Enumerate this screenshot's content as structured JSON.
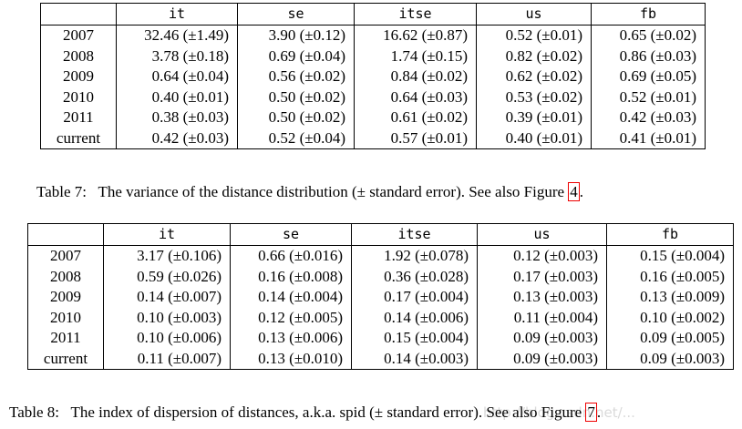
{
  "table7": {
    "headers": [
      "",
      "it",
      "se",
      "itse",
      "us",
      "fb"
    ],
    "rows": [
      {
        "label": "2007",
        "cells": [
          "32.46 (±1.49)",
          "3.90 (±0.12)",
          "16.62 (±0.87)",
          "0.52 (±0.01)",
          "0.65 (±0.02)"
        ]
      },
      {
        "label": "2008",
        "cells": [
          "3.78 (±0.18)",
          "0.69 (±0.04)",
          "1.74 (±0.15)",
          "0.82 (±0.02)",
          "0.86 (±0.03)"
        ]
      },
      {
        "label": "2009",
        "cells": [
          "0.64 (±0.04)",
          "0.56 (±0.02)",
          "0.84 (±0.02)",
          "0.62 (±0.02)",
          "0.69 (±0.05)"
        ]
      },
      {
        "label": "2010",
        "cells": [
          "0.40 (±0.01)",
          "0.50 (±0.02)",
          "0.64 (±0.03)",
          "0.53 (±0.02)",
          "0.52 (±0.01)"
        ]
      },
      {
        "label": "2011",
        "cells": [
          "0.38 (±0.03)",
          "0.50 (±0.02)",
          "0.61 (±0.02)",
          "0.39 (±0.01)",
          "0.42 (±0.03)"
        ]
      },
      {
        "label": "current",
        "cells": [
          "0.42 (±0.03)",
          "0.52 (±0.04)",
          "0.57 (±0.01)",
          "0.40 (±0.01)",
          "0.41 (±0.01)"
        ]
      }
    ],
    "caption": {
      "number": "Table 7:",
      "text": "The variance of the distance distribution (± standard error). See also Figure ",
      "ref": "4",
      "end": "."
    }
  },
  "table8": {
    "headers": [
      "",
      "it",
      "se",
      "itse",
      "us",
      "fb"
    ],
    "rows": [
      {
        "label": "2007",
        "cells": [
          "3.17 (±0.106)",
          "0.66 (±0.016)",
          "1.92 (±0.078)",
          "0.12 (±0.003)",
          "0.15 (±0.004)"
        ]
      },
      {
        "label": "2008",
        "cells": [
          "0.59 (±0.026)",
          "0.16 (±0.008)",
          "0.36 (±0.028)",
          "0.17 (±0.003)",
          "0.16 (±0.005)"
        ]
      },
      {
        "label": "2009",
        "cells": [
          "0.14 (±0.007)",
          "0.14 (±0.004)",
          "0.17 (±0.004)",
          "0.13 (±0.003)",
          "0.13 (±0.009)"
        ]
      },
      {
        "label": "2010",
        "cells": [
          "0.10 (±0.003)",
          "0.12 (±0.005)",
          "0.14 (±0.006)",
          "0.11 (±0.004)",
          "0.10 (±0.002)"
        ]
      },
      {
        "label": "2011",
        "cells": [
          "0.10 (±0.006)",
          "0.13 (±0.006)",
          "0.15 (±0.004)",
          "0.09 (±0.003)",
          "0.09 (±0.005)"
        ]
      },
      {
        "label": "current",
        "cells": [
          "0.11 (±0.007)",
          "0.13 (±0.010)",
          "0.14 (±0.003)",
          "0.09 (±0.003)",
          "0.09 (±0.003)"
        ]
      }
    ],
    "caption": {
      "number": "Table 8:",
      "text": "The index of dispersion of distances, a.k.a. spid (± standard error). See also Figure ",
      "ref": "7",
      "end": "."
    }
  },
  "watermark": "http://blog.csdn.net/..."
}
